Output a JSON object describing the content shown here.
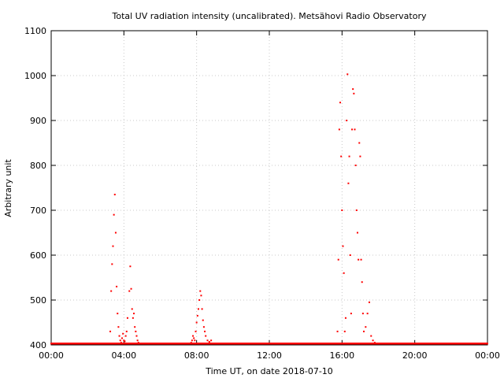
{
  "chart_data": {
    "type": "scatter",
    "title": "Total UV radiation intensity (uncalibrated). Metsähovi Radio Observatory",
    "xlabel": "Time UT, on date 2018-07-10",
    "ylabel": "Arbitrary unit",
    "xlim": [
      0,
      24
    ],
    "ylim": [
      400,
      1100
    ],
    "x_tick_labels": [
      "00:00",
      "04:00",
      "08:00",
      "12:00",
      "16:00",
      "20:00",
      "00:00"
    ],
    "y_tick_labels": [
      "400",
      "500",
      "600",
      "700",
      "800",
      "900",
      "1000",
      "1100"
    ],
    "grid": true,
    "marker_color": "#ff0000",
    "baseline": 403,
    "baseline_segments": [
      [
        0,
        24
      ]
    ],
    "peaks": [
      {
        "x": [
          3.25,
          3.3,
          3.35,
          3.4,
          3.45,
          3.5,
          3.55,
          3.6,
          3.65,
          3.7,
          3.75,
          3.8,
          3.85,
          3.9,
          3.95,
          4.0,
          4.05,
          4.1,
          4.15,
          4.2,
          4.3,
          4.35,
          4.4,
          4.45,
          4.5,
          4.55,
          4.6,
          4.65,
          4.7,
          4.75,
          4.8
        ],
        "y": [
          430,
          520,
          580,
          620,
          690,
          735,
          650,
          530,
          470,
          440,
          420,
          410,
          405,
          415,
          425,
          410,
          408,
          420,
          430,
          460,
          520,
          575,
          525,
          480,
          460,
          470,
          440,
          430,
          420,
          410,
          405
        ]
      },
      {
        "x": [
          7.7,
          7.75,
          7.8,
          7.85,
          7.9,
          7.95,
          8.0,
          8.05,
          8.1,
          8.15,
          8.2,
          8.25,
          8.3,
          8.35,
          8.4,
          8.45,
          8.5,
          8.6,
          8.7,
          8.8
        ],
        "y": [
          405,
          410,
          420,
          415,
          410,
          430,
          450,
          465,
          480,
          500,
          520,
          510,
          480,
          455,
          440,
          430,
          420,
          410,
          407,
          410
        ]
      },
      {
        "x": [
          15.75,
          15.8,
          15.85,
          15.9,
          15.95,
          16.0,
          16.05,
          16.1,
          16.15,
          16.2,
          16.25,
          16.3,
          16.35,
          16.4,
          16.45,
          16.5,
          16.55,
          16.6,
          16.65,
          16.7,
          16.75,
          16.8,
          16.85,
          16.9,
          16.95,
          17.0,
          17.05,
          17.1,
          17.15,
          17.2,
          17.3,
          17.4,
          17.5,
          17.6,
          17.7,
          17.8
        ],
        "y": [
          430,
          590,
          880,
          940,
          820,
          700,
          620,
          560,
          430,
          460,
          900,
          1003,
          760,
          820,
          600,
          470,
          880,
          970,
          960,
          880,
          800,
          700,
          650,
          590,
          850,
          820,
          590,
          540,
          470,
          430,
          440,
          470,
          495,
          420,
          410,
          405
        ]
      }
    ]
  }
}
